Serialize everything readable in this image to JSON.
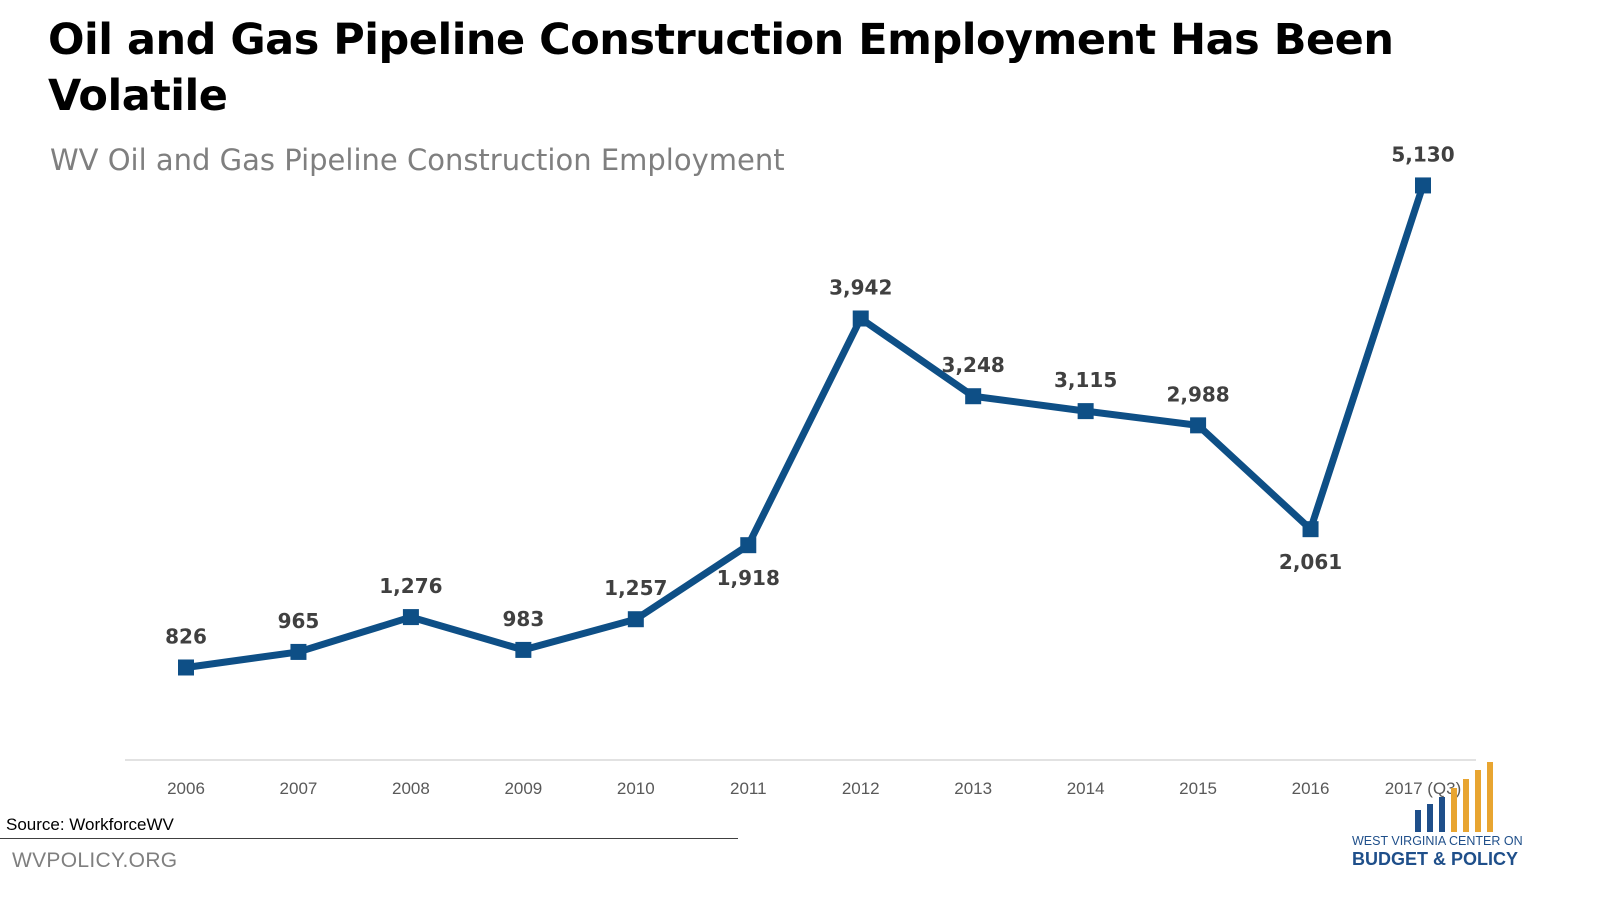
{
  "slide": {
    "title": "Oil and Gas Pipeline Construction Employment Has Been Volatile",
    "subtitle": "WV Oil and Gas Pipeline Construction Employment",
    "source": "Source: WorkforceWV",
    "url": "WVPOLICY.ORG"
  },
  "logo": {
    "line1": "WEST VIRGINIA CENTER ON",
    "line2": "BUDGET & POLICY",
    "bar_colors": [
      "#1f4f8a",
      "#1f4f8a",
      "#1f4f8a",
      "#e8a531",
      "#e8a531",
      "#e8a531",
      "#e8a531"
    ]
  },
  "chart_data": {
    "type": "line",
    "title": "WV Oil and Gas Pipeline Construction Employment",
    "xlabel": "",
    "ylabel": "",
    "categories": [
      "2006",
      "2007",
      "2008",
      "2009",
      "2010",
      "2011",
      "2012",
      "2013",
      "2014",
      "2015",
      "2016",
      "2017 (Q3)"
    ],
    "values": [
      826,
      965,
      1276,
      983,
      1257,
      1918,
      3942,
      3248,
      3115,
      2988,
      2061,
      5130
    ],
    "data_labels": [
      "826",
      "965",
      "1,276",
      "983",
      "1,257",
      "1,918",
      "3,942",
      "3,248",
      "3,115",
      "2,988",
      "2,061",
      "5,130"
    ],
    "label_positions": [
      "above",
      "above",
      "above",
      "above",
      "above",
      "below",
      "above",
      "above",
      "above",
      "above",
      "below",
      "above"
    ],
    "ylim": [
      0,
      6000
    ],
    "grid": false,
    "legend": "none",
    "line_color": "#0e4f86",
    "marker": "square"
  }
}
